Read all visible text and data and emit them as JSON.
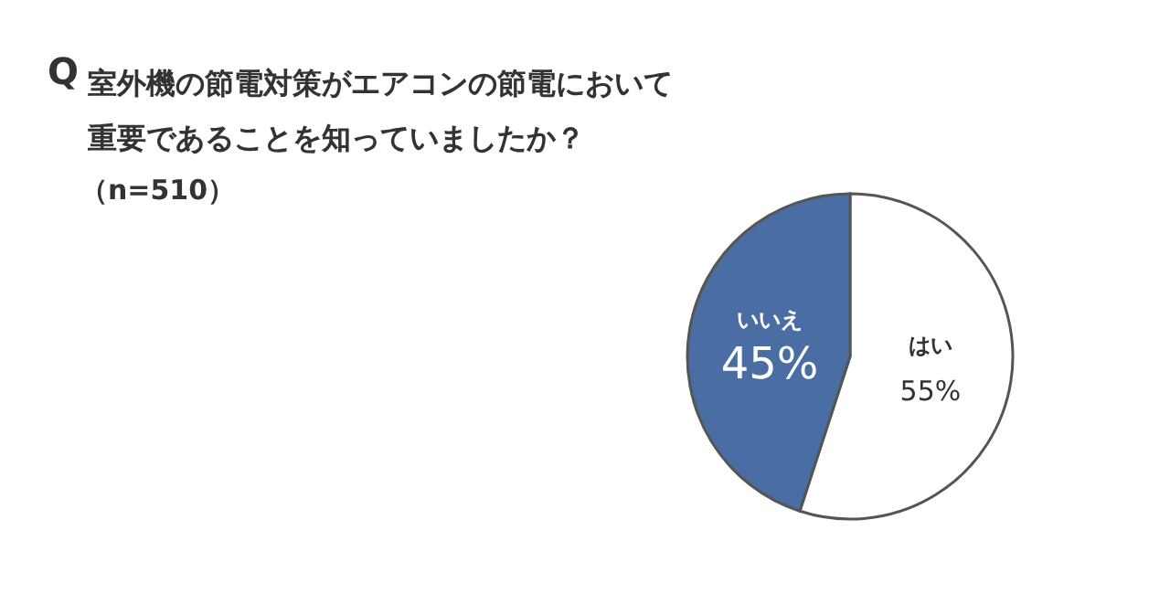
{
  "chart_data": {
    "type": "pie",
    "title": "室外機の節電対策がエアコンの節電において重要であることを知っていましたか？",
    "subtitle": "（n=510）",
    "annotations": [
      "Q"
    ],
    "categories": [
      "はい",
      "いいえ"
    ],
    "values": [
      55,
      45
    ],
    "value_labels": [
      "55%",
      "45%"
    ],
    "colors": [
      "#ffffff",
      "#4a6da3"
    ]
  }
}
